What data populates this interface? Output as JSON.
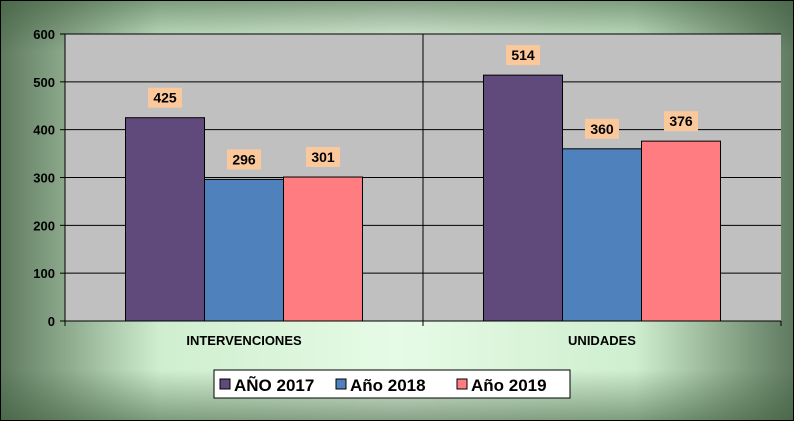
{
  "chart_data": {
    "type": "bar",
    "title": "",
    "xlabel": "",
    "ylabel": "",
    "categories": [
      "INTERVENCIONES",
      "UNIDADES"
    ],
    "series": [
      {
        "name": "AÑO 2017",
        "values": [
          425,
          514
        ],
        "color": "#604a7b"
      },
      {
        "name": "Año 2018",
        "values": [
          296,
          360
        ],
        "color": "#4f81bd"
      },
      {
        "name": "Año 2019",
        "values": [
          301,
          376
        ],
        "color": "#ff7c80"
      }
    ],
    "ylim": [
      0,
      600
    ],
    "yticks": [
      "0",
      "100",
      "200",
      "300",
      "400",
      "500",
      "600"
    ],
    "grid": true,
    "legend": "bottom",
    "plot_background": "#c0c0c0",
    "label_background": "#fbc89c"
  }
}
